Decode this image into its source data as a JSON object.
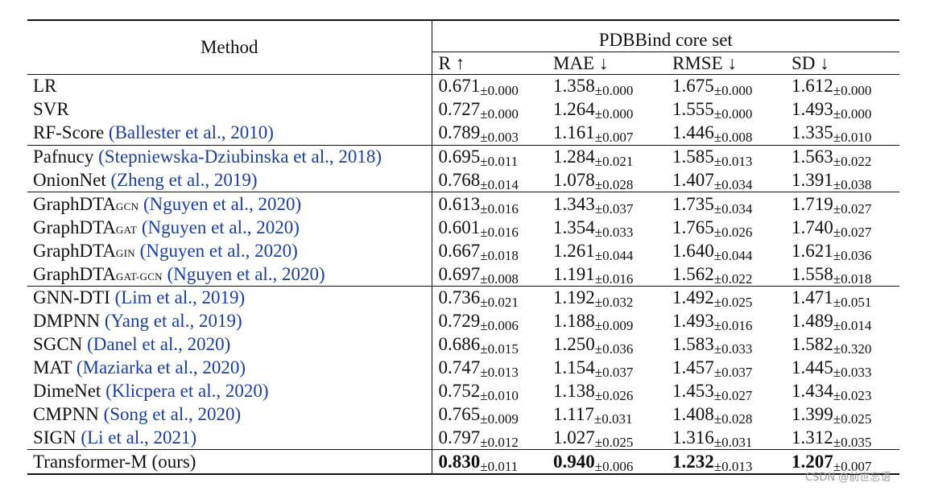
{
  "table": {
    "method_header": "Method",
    "group_header": "PDBBind core set",
    "columns": [
      "R ↑",
      "MAE ↓",
      "RMSE ↓",
      "SD ↓"
    ],
    "groups": [
      [
        {
          "name": "LR",
          "sub": "",
          "cite": "",
          "vals": [
            [
              "0.671",
              "±0.000"
            ],
            [
              "1.358",
              "±0.000"
            ],
            [
              "1.675",
              "±0.000"
            ],
            [
              "1.612",
              "±0.000"
            ]
          ]
        },
        {
          "name": "SVR",
          "sub": "",
          "cite": "",
          "vals": [
            [
              "0.727",
              "±0.000"
            ],
            [
              "1.264",
              "±0.000"
            ],
            [
              "1.555",
              "±0.000"
            ],
            [
              "1.493",
              "±0.000"
            ]
          ]
        },
        {
          "name": "RF-Score",
          "sub": "",
          "cite": "(Ballester et al., 2010)",
          "vals": [
            [
              "0.789",
              "±0.003"
            ],
            [
              "1.161",
              "±0.007"
            ],
            [
              "1.446",
              "±0.008"
            ],
            [
              "1.335",
              "±0.010"
            ]
          ]
        }
      ],
      [
        {
          "name": "Pafnucy",
          "sub": "",
          "cite": "(Stepniewska-Dziubinska et al., 2018)",
          "vals": [
            [
              "0.695",
              "±0.011"
            ],
            [
              "1.284",
              "±0.021"
            ],
            [
              "1.585",
              "±0.013"
            ],
            [
              "1.563",
              "±0.022"
            ]
          ]
        },
        {
          "name": "OnionNet",
          "sub": "",
          "cite": "(Zheng et al., 2019)",
          "vals": [
            [
              "0.768",
              "±0.014"
            ],
            [
              "1.078",
              "±0.028"
            ],
            [
              "1.407",
              "±0.034"
            ],
            [
              "1.391",
              "±0.038"
            ]
          ]
        }
      ],
      [
        {
          "name": "GraphDTA",
          "sub": "GCN",
          "cite": "(Nguyen et al., 2020)",
          "vals": [
            [
              "0.613",
              "±0.016"
            ],
            [
              "1.343",
              "±0.037"
            ],
            [
              "1.735",
              "±0.034"
            ],
            [
              "1.719",
              "±0.027"
            ]
          ]
        },
        {
          "name": "GraphDTA",
          "sub": "GAT",
          "cite": "(Nguyen et al., 2020)",
          "vals": [
            [
              "0.601",
              "±0.016"
            ],
            [
              "1.354",
              "±0.033"
            ],
            [
              "1.765",
              "±0.026"
            ],
            [
              "1.740",
              "±0.027"
            ]
          ]
        },
        {
          "name": "GraphDTA",
          "sub": "GIN",
          "cite": "(Nguyen et al., 2020)",
          "vals": [
            [
              "0.667",
              "±0.018"
            ],
            [
              "1.261",
              "±0.044"
            ],
            [
              "1.640",
              "±0.044"
            ],
            [
              "1.621",
              "±0.036"
            ]
          ]
        },
        {
          "name": "GraphDTA",
          "sub": "GAT-GCN",
          "cite": "(Nguyen et al., 2020)",
          "vals": [
            [
              "0.697",
              "±0.008"
            ],
            [
              "1.191",
              "±0.016"
            ],
            [
              "1.562",
              "±0.022"
            ],
            [
              "1.558",
              "±0.018"
            ]
          ]
        }
      ],
      [
        {
          "name": "GNN-DTI",
          "sub": "",
          "cite": "(Lim et al., 2019)",
          "vals": [
            [
              "0.736",
              "±0.021"
            ],
            [
              "1.192",
              "±0.032"
            ],
            [
              "1.492",
              "±0.025"
            ],
            [
              "1.471",
              "±0.051"
            ]
          ]
        },
        {
          "name": "DMPNN",
          "sub": "",
          "cite": "(Yang et al., 2019)",
          "vals": [
            [
              "0.729",
              "±0.006"
            ],
            [
              "1.188",
              "±0.009"
            ],
            [
              "1.493",
              "±0.016"
            ],
            [
              "1.489",
              "±0.014"
            ]
          ]
        },
        {
          "name": "SGCN",
          "sub": "",
          "cite": "(Danel et al., 2020)",
          "vals": [
            [
              "0.686",
              "±0.015"
            ],
            [
              "1.250",
              "±0.036"
            ],
            [
              "1.583",
              "±0.033"
            ],
            [
              "1.582",
              "±0.320"
            ]
          ]
        },
        {
          "name": "MAT",
          "sub": "",
          "cite": "(Maziarka et al., 2020)",
          "vals": [
            [
              "0.747",
              "±0.013"
            ],
            [
              "1.154",
              "±0.037"
            ],
            [
              "1.457",
              "±0.037"
            ],
            [
              "1.445",
              "±0.033"
            ]
          ]
        },
        {
          "name": "DimeNet",
          "sub": "",
          "cite": "(Klicpera et al., 2020)",
          "vals": [
            [
              "0.752",
              "±0.010"
            ],
            [
              "1.138",
              "±0.026"
            ],
            [
              "1.453",
              "±0.027"
            ],
            [
              "1.434",
              "±0.023"
            ]
          ]
        },
        {
          "name": "CMPNN",
          "sub": "",
          "cite": "(Song et al., 2020)",
          "vals": [
            [
              "0.765",
              "±0.009"
            ],
            [
              "1.117",
              "±0.031"
            ],
            [
              "1.408",
              "±0.028"
            ],
            [
              "1.399",
              "±0.025"
            ]
          ]
        },
        {
          "name": "SIGN",
          "sub": "",
          "cite": "(Li et al., 2021)",
          "vals": [
            [
              "0.797",
              "±0.012"
            ],
            [
              "1.027",
              "±0.025"
            ],
            [
              "1.316",
              "±0.031"
            ],
            [
              "1.312",
              "±0.035"
            ]
          ]
        }
      ],
      [
        {
          "name": "Transformer-M (ours)",
          "sub": "",
          "cite": "",
          "best": true,
          "vals": [
            [
              "0.830",
              "±0.011"
            ],
            [
              "0.940",
              "±0.006"
            ],
            [
              "1.232",
              "±0.013"
            ],
            [
              "1.207",
              "±0.007"
            ]
          ]
        }
      ]
    ]
  },
  "watermark": "CSDN @前世忘语"
}
